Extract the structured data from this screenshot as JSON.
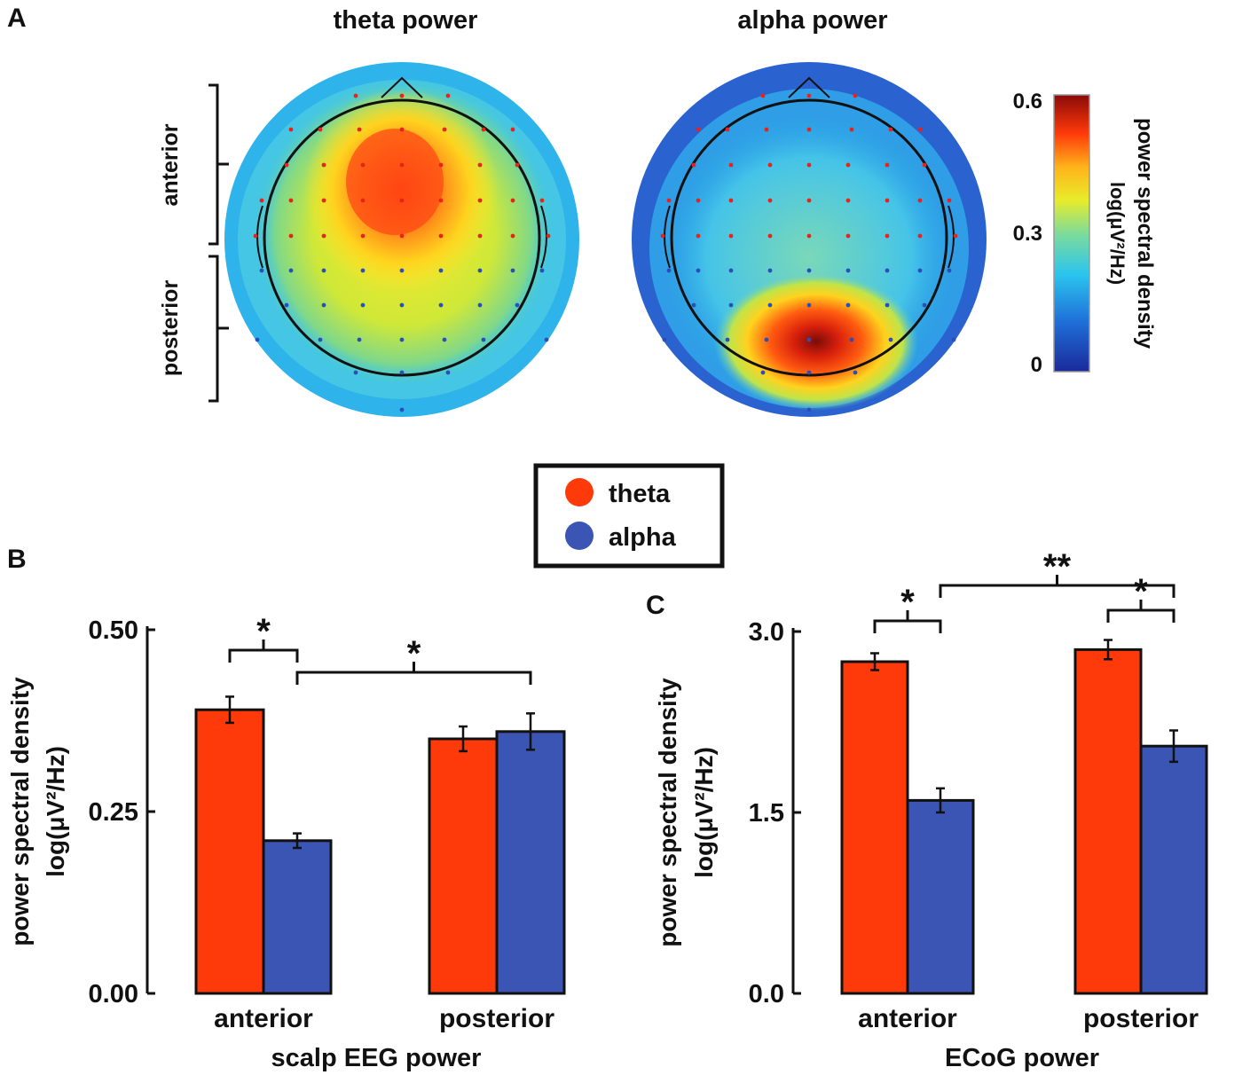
{
  "panel_labels": {
    "a": "A",
    "b": "B",
    "c": "C"
  },
  "colors": {
    "theta": "#ff3a0a",
    "alpha": "#3a55b3",
    "axis": "#111111"
  },
  "panel_a": {
    "theta_title": "theta power",
    "alpha_title": "alpha power",
    "anterior_label": "anterior",
    "posterior_label": "posterior",
    "colorbar": {
      "label_line1": "power spectral density",
      "label_line2": "log(μV²/Hz)",
      "ticks": [
        "0.6",
        "0.3",
        "0"
      ],
      "min": 0,
      "max": 0.6
    }
  },
  "legend": {
    "items": [
      {
        "label": "theta",
        "color": "#ff3a0a"
      },
      {
        "label": "alpha",
        "color": "#3a55b3"
      }
    ]
  },
  "chart_data": [
    {
      "type": "bar",
      "panel": "B",
      "title": "",
      "xlabel": "scalp EEG power",
      "ylabel_line1": "power spectral density",
      "ylabel_line2": "log(μV²/Hz)",
      "categories": [
        "anterior",
        "posterior"
      ],
      "series": [
        {
          "name": "theta",
          "values": [
            0.39,
            0.35
          ],
          "errors": [
            0.018,
            0.017
          ]
        },
        {
          "name": "alpha",
          "values": [
            0.21,
            0.36
          ],
          "errors": [
            0.01,
            0.025
          ]
        }
      ],
      "ylim": [
        0,
        0.5
      ],
      "yticks": [
        "0.50",
        "0.25",
        "0.00"
      ],
      "ytick_values": [
        0.5,
        0.25,
        0
      ],
      "significance": [
        {
          "label": "*",
          "between": "anterior theta vs anterior alpha"
        },
        {
          "label": "*",
          "between": "anterior alpha vs posterior alpha"
        }
      ]
    },
    {
      "type": "bar",
      "panel": "C",
      "title": "",
      "xlabel": "ECoG power",
      "ylabel_line1": "power spectral density",
      "ylabel_line2": "log(μV²/Hz)",
      "categories": [
        "anterior",
        "posterior"
      ],
      "series": [
        {
          "name": "theta",
          "values": [
            2.75,
            2.85
          ],
          "errors": [
            0.07,
            0.08
          ]
        },
        {
          "name": "alpha",
          "values": [
            1.6,
            2.05
          ],
          "errors": [
            0.1,
            0.13
          ]
        }
      ],
      "ylim": [
        0,
        3.0
      ],
      "yticks": [
        "3.0",
        "1.5",
        "0.0"
      ],
      "ytick_values": [
        3.0,
        1.5,
        0
      ],
      "significance": [
        {
          "label": "*",
          "between": "anterior theta vs anterior alpha"
        },
        {
          "label": "**",
          "between": "anterior alpha vs posterior alpha"
        },
        {
          "label": "*",
          "between": "posterior theta vs posterior alpha"
        }
      ]
    }
  ]
}
